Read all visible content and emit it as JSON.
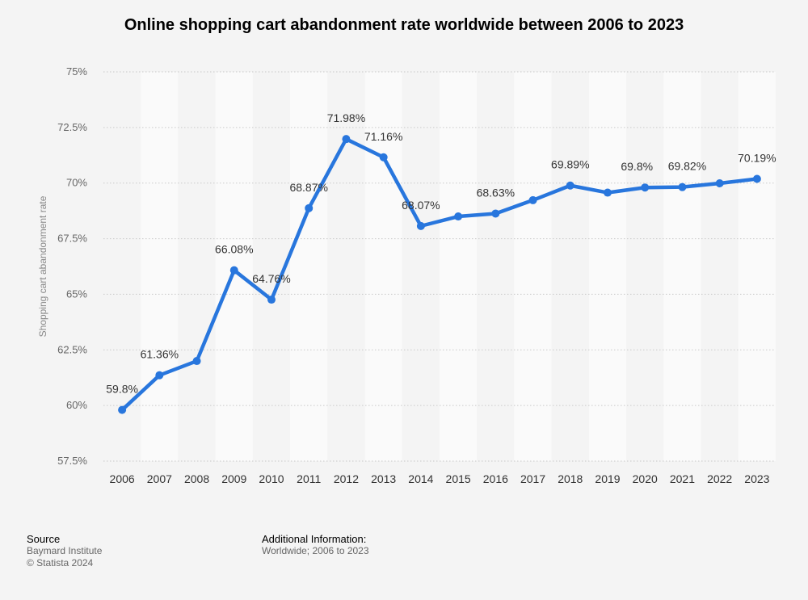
{
  "chart_data": {
    "type": "line",
    "title": "Online shopping cart abandonment rate worldwide between 2006 to 2023",
    "xlabel": "",
    "ylabel": "Shopping cart abandonment rate",
    "categories": [
      "2006",
      "2007",
      "2008",
      "2009",
      "2010",
      "2011",
      "2012",
      "2013",
      "2014",
      "2015",
      "2016",
      "2017",
      "2018",
      "2019",
      "2020",
      "2021",
      "2022",
      "2023"
    ],
    "series": [
      {
        "name": "Shopping cart abandonment rate",
        "color": "#2876dd",
        "values": [
          59.8,
          61.36,
          62.0,
          66.08,
          64.76,
          68.87,
          71.98,
          71.16,
          68.07,
          68.5,
          68.63,
          69.23,
          69.89,
          69.57,
          69.8,
          69.82,
          69.99,
          70.19
        ],
        "labels": [
          "59.8%",
          "61.36%",
          "",
          "66.08%",
          "64.76%",
          "68.87%",
          "71.98%",
          "71.16%",
          "68.07%",
          "",
          "68.63%",
          "",
          "69.89%",
          "",
          "69.8%",
          "69.82%",
          "",
          "70.19%"
        ]
      }
    ],
    "ylim": [
      57.5,
      75
    ],
    "yticks": [
      57.5,
      60,
      62.5,
      65,
      67.5,
      70,
      72.5,
      75
    ],
    "ytick_labels": [
      "57.5%",
      "60%",
      "62.5%",
      "65%",
      "67.5%",
      "70%",
      "72.5%",
      "75%"
    ],
    "grid": true
  },
  "footer": {
    "source_heading": "Source",
    "source_lines": [
      "Baymard Institute",
      "© Statista 2024"
    ],
    "info_heading": "Additional Information:",
    "info_text": "Worldwide; 2006 to 2023"
  }
}
